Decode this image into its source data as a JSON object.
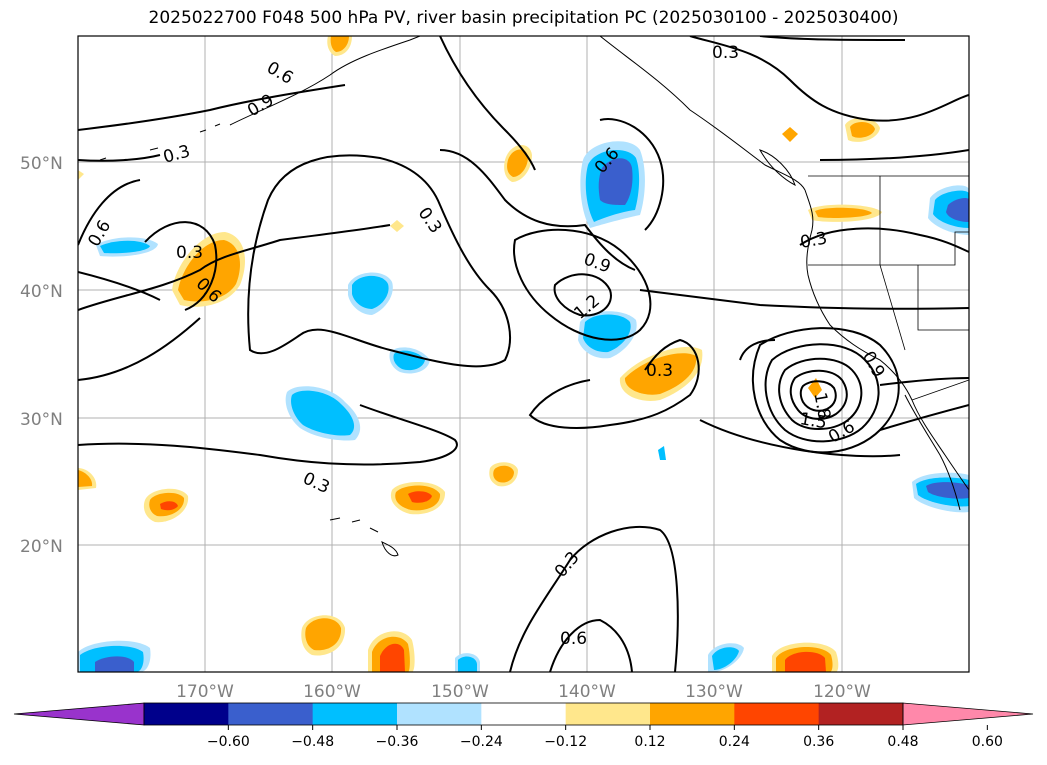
{
  "title": "2025022700 F048 500 hPa PV, river basin precipitation PC (2025030100 - 2025030400)",
  "map": {
    "lat_labels": [
      "50°N",
      "40°N",
      "30°N",
      "20°N"
    ],
    "lon_labels": [
      "170°W",
      "160°W",
      "150°W",
      "140°W",
      "130°W",
      "120°W"
    ],
    "contour_labels": [
      "0.3",
      "0.6",
      "0.9",
      "0.3",
      "0.6",
      "0.3",
      "0.6",
      "0.3",
      "0.9",
      "1.2",
      "0.6",
      "0.3",
      "0.3",
      "0.3",
      "0.6",
      "0.3",
      "0.9",
      "1.8",
      "1.5",
      "0.6",
      "0.3",
      "0.6"
    ]
  },
  "colorbar": {
    "ticks": [
      "−0.60",
      "−0.48",
      "−0.36",
      "−0.24",
      "−0.12",
      "0.12",
      "0.24",
      "0.36",
      "0.48",
      "0.60"
    ],
    "colors": [
      "#9933cc",
      "#00008b",
      "#3a5fcd",
      "#00bfff",
      "#b0e2ff",
      "#ffffff",
      "#ffe78c",
      "#ffa500",
      "#ff4500",
      "#b22222",
      "#ff88aa"
    ]
  }
}
